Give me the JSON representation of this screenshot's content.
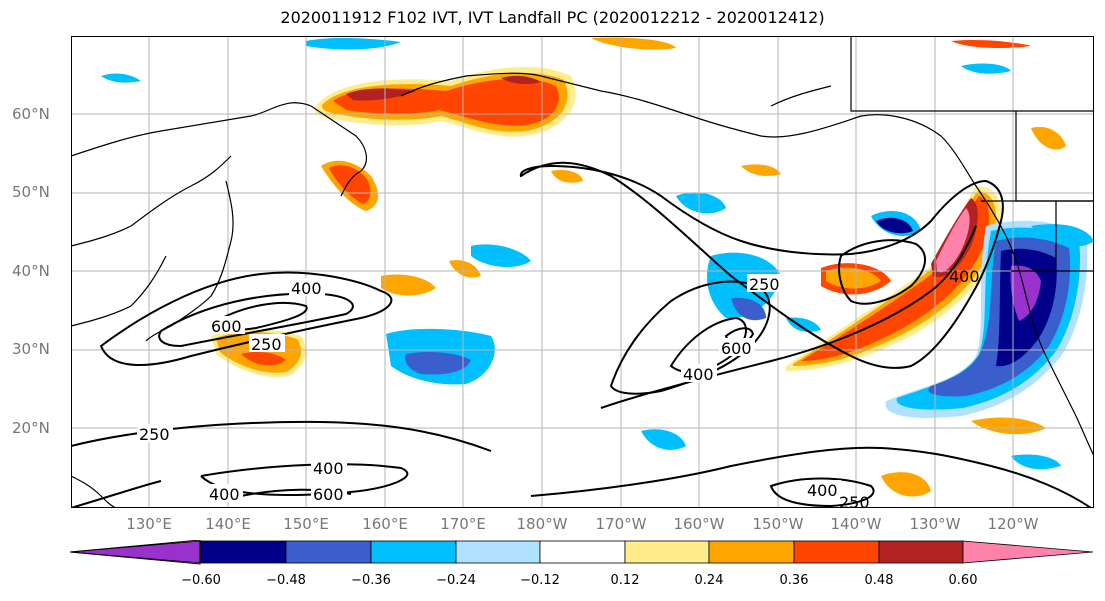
{
  "title": "2020011912 F102 IVT, IVT Landfall PC (2020012212 - 2020012412)",
  "lat_labels": [
    "60°N",
    "50°N",
    "40°N",
    "30°N",
    "20°N"
  ],
  "lon_labels": [
    "130°E",
    "140°E",
    "150°E",
    "160°E",
    "170°E",
    "180°W",
    "170°W",
    "160°W",
    "150°W",
    "140°W",
    "130°W",
    "120°W"
  ],
  "contour_labels": {
    "c400_west": "400",
    "c600_west": "600",
    "c250_west": "250",
    "c250_south": "250",
    "c400_south_a": "400",
    "c600_south": "600",
    "c400_south_b": "400",
    "c250_mid": "250",
    "c600_mid": "600",
    "c400_mid": "400",
    "c400_east": "400",
    "c400_se": "400",
    "c250_se": "250"
  },
  "colorbar": {
    "ticks": [
      "−0.60",
      "−0.48",
      "−0.36",
      "−0.24",
      "−0.12",
      "0.12",
      "0.24",
      "0.36",
      "0.48",
      "0.60"
    ],
    "colors": [
      "#9932cc",
      "#00008b",
      "#3a5fcd",
      "#00bfff",
      "#b0e2ff",
      "#ffffff",
      "#ffec8b",
      "#ffa500",
      "#ff4500",
      "#b22222",
      "#ff82ab"
    ]
  }
}
